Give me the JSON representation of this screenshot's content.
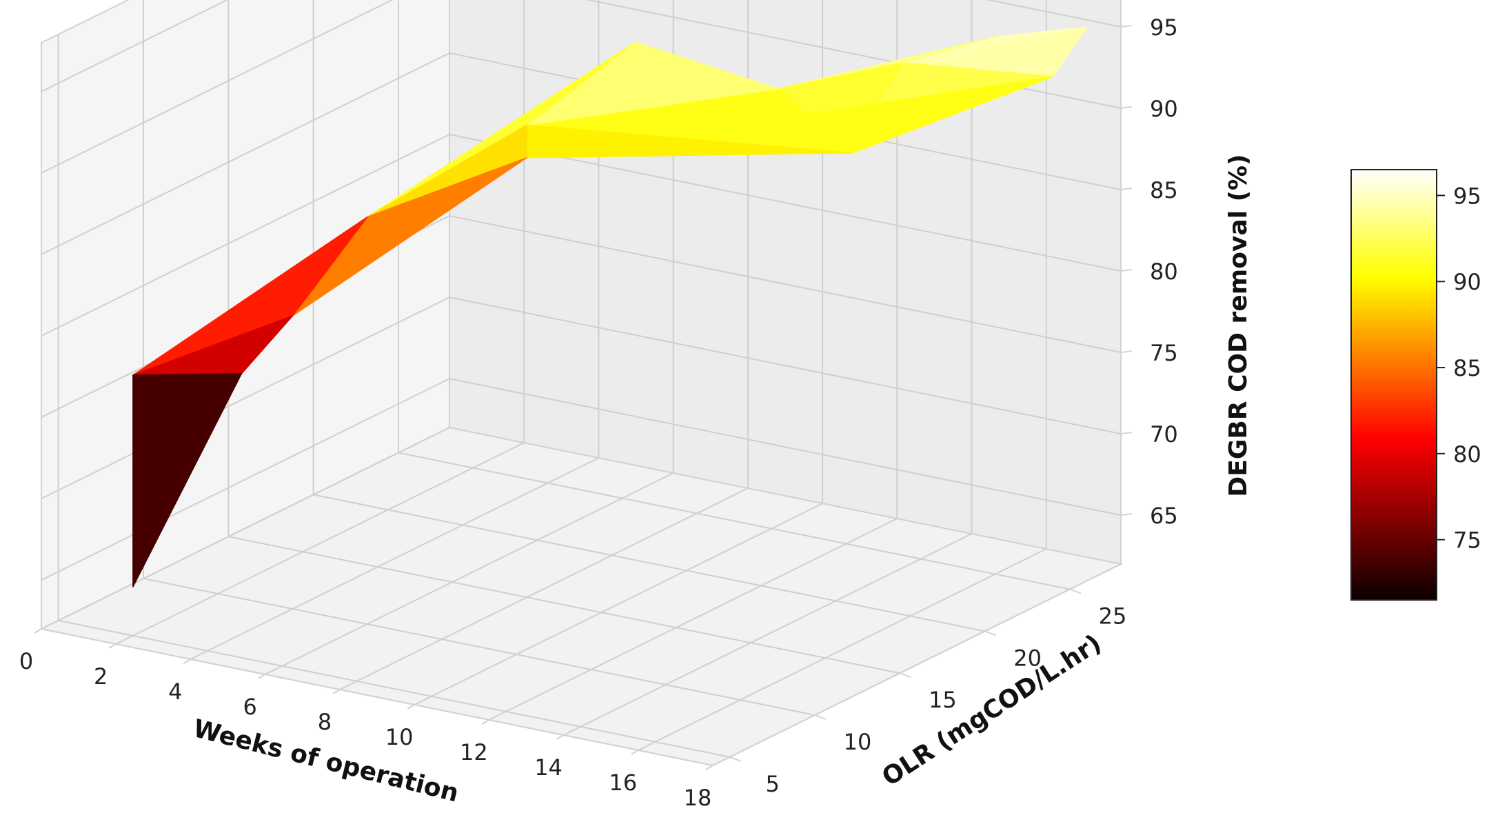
{
  "chart_data": {
    "type": "surface3d",
    "colormap": "hot",
    "xlabel": "Weeks of operation",
    "ylabel": "OLR (mgCOD/L.hr)",
    "zlabel": "DEGBR COD removal (%)",
    "xlim": [
      0,
      18
    ],
    "ylim": [
      4,
      28
    ],
    "zlim": [
      62,
      98
    ],
    "xticks": [
      "0",
      "2",
      "4",
      "6",
      "8",
      "10",
      "12",
      "14",
      "16",
      "18"
    ],
    "yticks": [
      "5",
      "10",
      "15",
      "20",
      "25"
    ],
    "zticks": [
      "65",
      "70",
      "75",
      "80",
      "85",
      "90",
      "95"
    ],
    "colorbar": {
      "ticks": [
        "75",
        "80",
        "85",
        "90",
        "95"
      ],
      "range": [
        71.5,
        96.5
      ]
    },
    "grid": true,
    "legend": "none",
    "points": [
      {
        "x": 2,
        "y": 5,
        "z": 65
      },
      {
        "x": 2,
        "y": 5,
        "z": 78
      },
      {
        "x": 4,
        "y": 7,
        "z": 78
      },
      {
        "x": 4,
        "y": 10,
        "z": 80
      },
      {
        "x": 6,
        "y": 10,
        "z": 87
      },
      {
        "x": 8,
        "y": 15,
        "z": 89
      },
      {
        "x": 8,
        "y": 15,
        "z": 91
      },
      {
        "x": 10,
        "y": 17,
        "z": 96
      },
      {
        "x": 12,
        "y": 21,
        "z": 92
      },
      {
        "x": 14,
        "y": 21,
        "z": 89
      },
      {
        "x": 14,
        "y": 24,
        "z": 93
      },
      {
        "x": 16,
        "y": 25,
        "z": 95
      },
      {
        "x": 18,
        "y": 26,
        "z": 96
      },
      {
        "x": 18,
        "y": 24,
        "z": 94
      }
    ],
    "triangles": [
      [
        0,
        1,
        2
      ],
      [
        1,
        2,
        3
      ],
      [
        1,
        3,
        4
      ],
      [
        2,
        3,
        4
      ],
      [
        4,
        5,
        6
      ],
      [
        4,
        6,
        7
      ],
      [
        3,
        5,
        4
      ],
      [
        5,
        6,
        9
      ],
      [
        6,
        7,
        8
      ],
      [
        6,
        8,
        9
      ],
      [
        8,
        9,
        10
      ],
      [
        8,
        10,
        11
      ],
      [
        10,
        11,
        12
      ],
      [
        9,
        10,
        13
      ],
      [
        10,
        12,
        13
      ],
      [
        5,
        9,
        13
      ]
    ]
  }
}
